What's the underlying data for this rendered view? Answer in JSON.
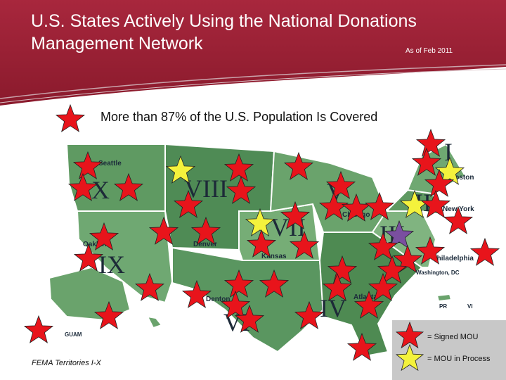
{
  "header": {
    "title_line1": "U.S. States Actively Using the National Donations",
    "title_line2": "Management Network",
    "date_note": "As of Feb 2011"
  },
  "subtitle": "More than 87% of the U.S. Population Is Covered",
  "map": {
    "regions": [
      "I",
      "II",
      "III",
      "IV",
      "V",
      "VI",
      "VII",
      "VIII",
      "IX",
      "X"
    ],
    "cities": [
      "Seattle",
      "Oakland",
      "Denver",
      "Kansas",
      "Chicago",
      "Boston",
      "New York",
      "Philadelphia",
      "Washington, DC",
      "Denton",
      "Atlanta",
      "PR",
      "VI",
      "GUAM"
    ]
  },
  "legend": [
    {
      "label": "= Signed MOU",
      "color": "#e8141b"
    },
    {
      "label": "= MOU in Process",
      "color": "#f4f23c"
    }
  ],
  "footer": "FEMA Territories I-X"
}
